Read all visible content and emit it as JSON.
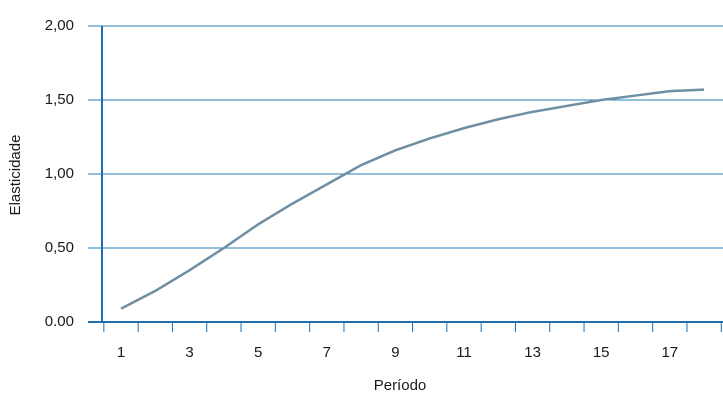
{
  "chart_data": {
    "type": "line",
    "x_label": "Período",
    "y_label": "Elasticidade",
    "categories": [
      "1",
      null,
      "3",
      null,
      "5",
      null,
      "7",
      null,
      "9",
      null,
      "11",
      null,
      "13",
      null,
      "15",
      null,
      "17",
      null
    ],
    "series": [
      {
        "name": "Elasticidade",
        "color": "#6e8fa3",
        "values": [
          0.09,
          0.21,
          0.35,
          0.5,
          0.66,
          0.8,
          0.93,
          1.06,
          1.16,
          1.24,
          1.31,
          1.37,
          1.42,
          1.46,
          1.5,
          1.53,
          1.56,
          1.57
        ]
      }
    ],
    "ylim": [
      0,
      2
    ],
    "yticks": [
      {
        "value": 0,
        "label": "0.00"
      },
      {
        "value": 0.5,
        "label": "0,50"
      },
      {
        "value": 1,
        "label": "1,00"
      },
      {
        "value": 1.5,
        "label": "1,50"
      },
      {
        "value": 2,
        "label": "2,00"
      }
    ],
    "grid": true,
    "grid_color": "#2a7fb8",
    "axis_color": "#1f6fae"
  }
}
